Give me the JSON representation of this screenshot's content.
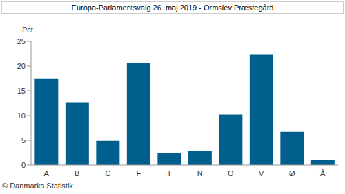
{
  "chart_data": {
    "type": "bar",
    "title": "Europa-Parlamentsvalg 26. maj 2019 - Ormslev Præstegård",
    "y_label": "Pct.",
    "source": "© Danmarks Statistik",
    "categories": [
      "A",
      "B",
      "C",
      "F",
      "I",
      "N",
      "O",
      "V",
      "Ø",
      "Å"
    ],
    "values": [
      17.4,
      12.7,
      4.9,
      20.6,
      2.4,
      2.8,
      10.2,
      22.3,
      6.7,
      1.1
    ],
    "color": "#005f8c",
    "ylim": [
      0,
      25
    ],
    "yticks": [
      0,
      5,
      10,
      15,
      20,
      25
    ],
    "grid": false
  }
}
